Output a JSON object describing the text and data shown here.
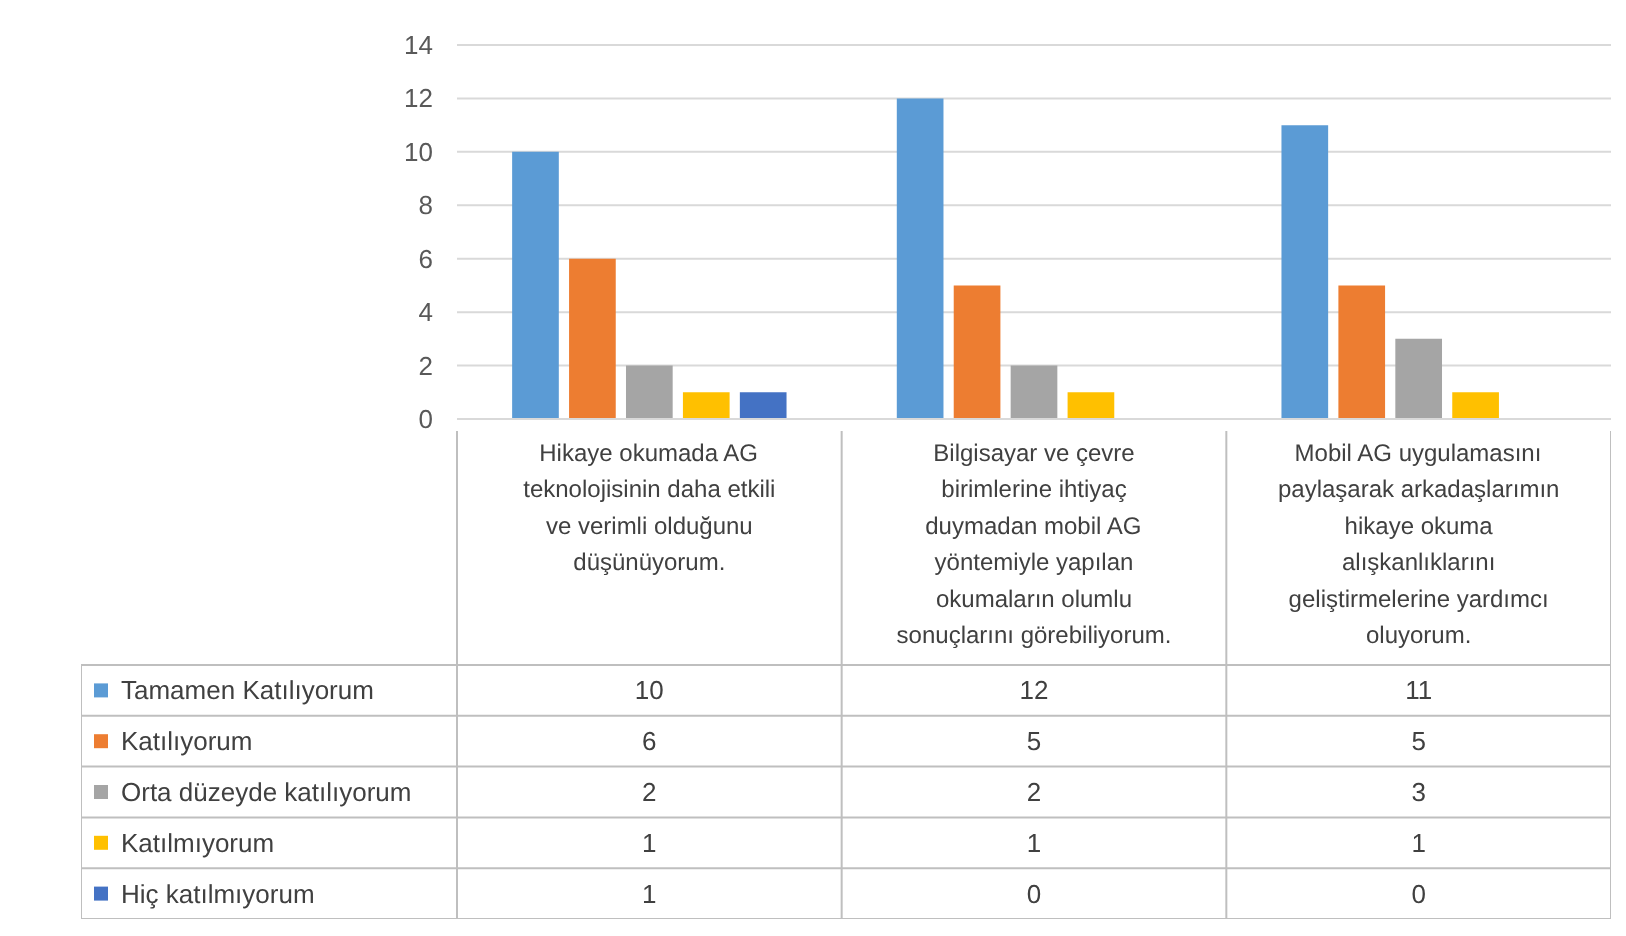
{
  "chart_data": {
    "type": "bar",
    "categories": [
      "Hikaye okumada AG teknolojisinin daha etkili ve verimli olduğunu düşünüyorum.",
      "Bilgisayar ve çevre birimlerine ihtiyaç duymadan mobil AG yöntemiyle yapılan okumaların olumlu sonuçlarını görebiliyorum.",
      "Mobil AG uygulamasını paylaşarak arkadaşlarımın hikaye okuma alışkanlıklarını geliştirmelerine yardımcı oluyorum."
    ],
    "series": [
      {
        "name": "Tamamen Katılıyorum",
        "color": "#5b9bd5",
        "values": [
          10,
          12,
          11
        ]
      },
      {
        "name": "Katılıyorum",
        "color": "#ed7d31",
        "values": [
          6,
          5,
          5
        ]
      },
      {
        "name": "Orta düzeyde katılıyorum",
        "color": "#a5a5a5",
        "values": [
          2,
          2,
          3
        ]
      },
      {
        "name": "Katılmıyorum",
        "color": "#ffc000",
        "values": [
          1,
          1,
          1
        ]
      },
      {
        "name": "Hiç katılmıyorum",
        "color": "#4472c4",
        "values": [
          1,
          0,
          0
        ]
      }
    ],
    "ylim": [
      0,
      14
    ],
    "yticks": [
      0,
      2,
      4,
      6,
      8,
      10,
      12,
      14
    ],
    "grid": "y",
    "data_labels": true,
    "legend": "bottom"
  }
}
